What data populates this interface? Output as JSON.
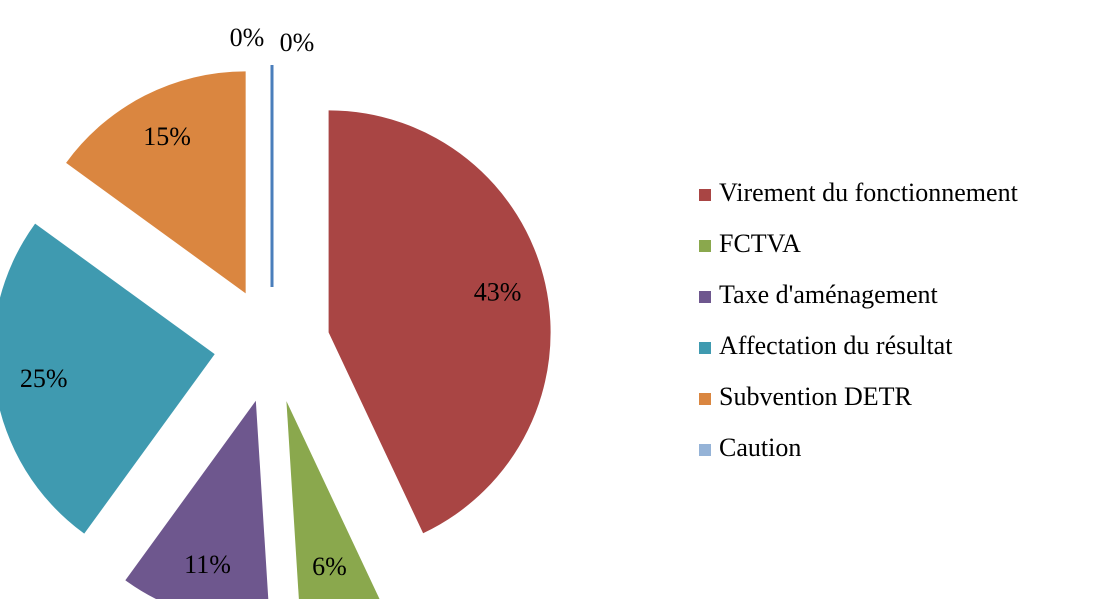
{
  "chart_data": {
    "type": "pie",
    "categories": [
      "Virement du fonctionnement",
      "FCTVA",
      "Taxe d'aménagement",
      "Affectation du résultat",
      "Subvention DETR",
      "Caution",
      null
    ],
    "values": [
      43,
      6,
      11,
      25,
      15,
      0,
      0
    ],
    "value_labels": [
      "43%",
      "6%",
      "11%",
      "25%",
      "15%",
      "0%",
      "0%"
    ],
    "colors": [
      "#a94544",
      "#8aa84d",
      "#6e578e",
      "#3f9ab0",
      "#da8640",
      "#95b3d7",
      "#4a7ebb"
    ],
    "exploded": true,
    "legend": "right"
  }
}
